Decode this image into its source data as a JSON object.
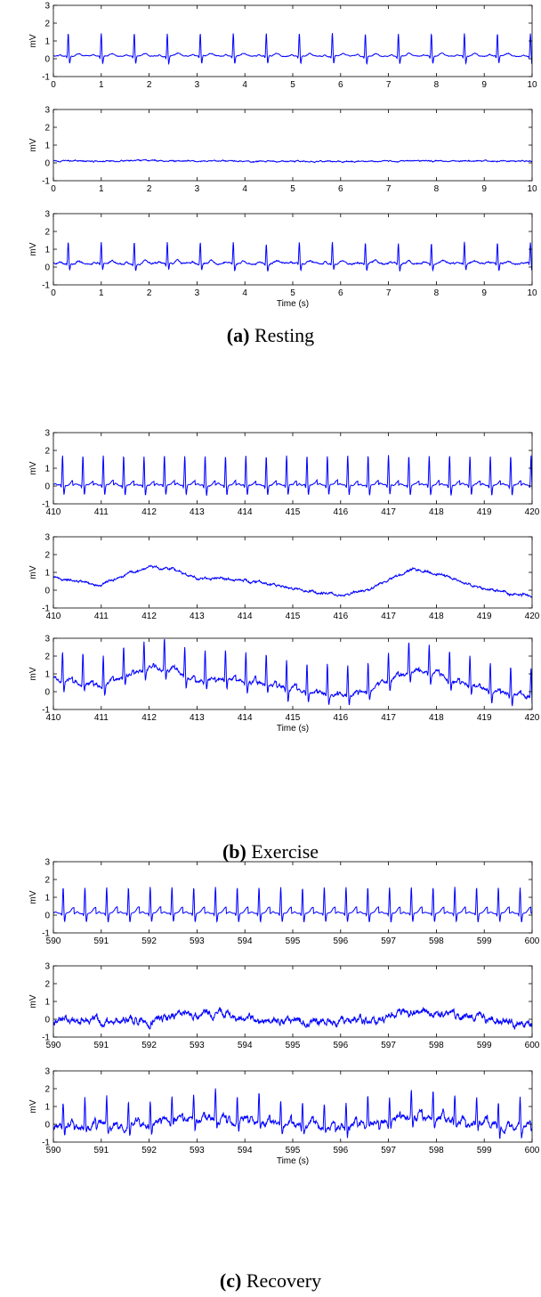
{
  "figure": {
    "captions": [
      {
        "letter": "(a)",
        "text": "Resting"
      },
      {
        "letter": "(b)",
        "text": "Exercise"
      },
      {
        "letter": "(c)",
        "text": "Recovery"
      }
    ],
    "colors": {
      "trace": "#0000ff",
      "axes": "#000000",
      "background": "#ffffff"
    }
  },
  "chart_data": [
    {
      "type": "line",
      "group": "Resting",
      "signal": "ecg-raw",
      "xlim": [
        0,
        10
      ],
      "ylim": [
        -1,
        3
      ],
      "xticks": [
        0,
        1,
        2,
        3,
        4,
        5,
        6,
        7,
        8,
        9,
        10
      ],
      "yticks": [
        -1,
        0,
        1,
        2,
        3
      ],
      "xlabel": "",
      "ylabel": "mV",
      "params": {
        "baseline": 0.15,
        "qrs": 1.3,
        "t": 0.15,
        "heart_rate_hz": 1.45,
        "noise": 0.015
      }
    },
    {
      "type": "line",
      "group": "Resting",
      "signal": "noise",
      "xlim": [
        0,
        10
      ],
      "ylim": [
        -1,
        3
      ],
      "xticks": [
        0,
        1,
        2,
        3,
        4,
        5,
        6,
        7,
        8,
        9,
        10
      ],
      "yticks": [
        -1,
        0,
        1,
        2,
        3
      ],
      "xlabel": "",
      "ylabel": "mV",
      "params": {
        "baseline": 0.1,
        "qrs": 0,
        "t": 0,
        "heart_rate_hz": 0,
        "noise": 0.02
      }
    },
    {
      "type": "line",
      "group": "Resting",
      "signal": "ecg-noisy",
      "xlim": [
        0,
        10
      ],
      "ylim": [
        -1,
        3
      ],
      "xticks": [
        0,
        1,
        2,
        3,
        4,
        5,
        6,
        7,
        8,
        9,
        10
      ],
      "yticks": [
        -1,
        0,
        1,
        2,
        3
      ],
      "xlabel": "Time (s)",
      "ylabel": "mV",
      "params": {
        "baseline": 0.2,
        "qrs": 1.2,
        "t": 0.15,
        "heart_rate_hz": 1.45,
        "noise": 0.03
      }
    },
    {
      "type": "line",
      "group": "Exercise",
      "signal": "ecg-raw",
      "xlim": [
        410,
        420
      ],
      "ylim": [
        -1,
        3
      ],
      "xticks": [
        410,
        411,
        412,
        413,
        414,
        415,
        416,
        417,
        418,
        419,
        420
      ],
      "yticks": [
        -1,
        0,
        1,
        2,
        3
      ],
      "xlabel": "",
      "ylabel": "mV",
      "params": {
        "baseline": 0.05,
        "qrs": 1.7,
        "t": 0.25,
        "heart_rate_hz": 2.35,
        "noise": 0.02
      }
    },
    {
      "type": "line",
      "group": "Exercise",
      "signal": "noise",
      "xlim": [
        410,
        420
      ],
      "ylim": [
        -1,
        3
      ],
      "xticks": [
        410,
        411,
        412,
        413,
        414,
        415,
        416,
        417,
        418,
        419,
        420
      ],
      "yticks": [
        -1,
        0,
        1,
        2,
        3
      ],
      "xlabel": "",
      "ylabel": "mV",
      "x": [
        410,
        411,
        411.5,
        412,
        412.5,
        413,
        413.5,
        414,
        414.5,
        415,
        415.5,
        416,
        416.5,
        417,
        417.5,
        418,
        418.5,
        419,
        419.5,
        420
      ],
      "y": [
        0.7,
        0.3,
        0.9,
        1.3,
        1.2,
        0.6,
        0.7,
        0.55,
        0.35,
        0.1,
        -0.15,
        -0.25,
        -0.05,
        0.6,
        1.15,
        1.0,
        0.5,
        0.1,
        -0.15,
        -0.35
      ],
      "params": {
        "noise": 0.04
      }
    },
    {
      "type": "line",
      "group": "Exercise",
      "signal": "ecg-noisy",
      "xlim": [
        410,
        420
      ],
      "ylim": [
        -1,
        3
      ],
      "xticks": [
        410,
        411,
        412,
        413,
        414,
        415,
        416,
        417,
        418,
        419,
        420
      ],
      "yticks": [
        -1,
        0,
        1,
        2,
        3
      ],
      "xlabel": "Time (s)",
      "ylabel": "mV",
      "params": {
        "qrs": 1.7,
        "t": 0.25,
        "heart_rate_hz": 2.35,
        "noise": 0.06
      }
    },
    {
      "type": "line",
      "group": "Recovery",
      "signal": "ecg-raw",
      "xlim": [
        590,
        600
      ],
      "ylim": [
        -1,
        3
      ],
      "xticks": [
        590,
        591,
        592,
        593,
        594,
        595,
        596,
        597,
        598,
        599,
        600
      ],
      "yticks": [
        -1,
        0,
        1,
        2,
        3
      ],
      "xlabel": "",
      "ylabel": "mV",
      "params": {
        "baseline": 0.1,
        "qrs": 1.5,
        "t": 0.35,
        "heart_rate_hz": 2.2,
        "noise": 0.01
      }
    },
    {
      "type": "line",
      "group": "Recovery",
      "signal": "noise",
      "xlim": [
        590,
        600
      ],
      "ylim": [
        -1,
        3
      ],
      "xticks": [
        590,
        591,
        592,
        593,
        594,
        595,
        596,
        597,
        598,
        599,
        600
      ],
      "yticks": [
        -1,
        0,
        1,
        2,
        3
      ],
      "xlabel": "",
      "ylabel": "mV",
      "x": [
        590,
        591,
        592,
        592.5,
        593,
        593.5,
        594,
        594.5,
        595,
        595.5,
        596,
        596.5,
        597,
        597.5,
        598,
        598.5,
        599,
        599.5,
        600
      ],
      "y": [
        -0.2,
        -0.05,
        -0.1,
        0.2,
        0.3,
        0.25,
        0.15,
        -0.05,
        -0.2,
        -0.1,
        -0.15,
        -0.05,
        0.15,
        0.4,
        0.35,
        0.15,
        0.05,
        -0.1,
        -0.3
      ],
      "params": {
        "noise": 0.12
      }
    },
    {
      "type": "line",
      "group": "Recovery",
      "signal": "ecg-noisy",
      "xlim": [
        590,
        600
      ],
      "ylim": [
        -1,
        3
      ],
      "xticks": [
        590,
        591,
        592,
        593,
        594,
        595,
        596,
        597,
        598,
        599,
        600
      ],
      "yticks": [
        -1,
        0,
        1,
        2,
        3
      ],
      "xlabel": "Time (s)",
      "ylabel": "mV",
      "params": {
        "qrs": 1.5,
        "t": 0.35,
        "heart_rate_hz": 2.2,
        "noise": 0.12
      }
    }
  ]
}
